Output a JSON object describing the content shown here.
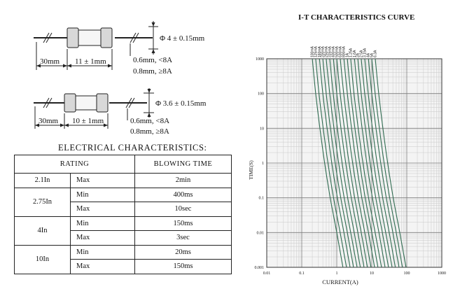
{
  "fuse_drawings": {
    "top": {
      "diameter_label": "Φ 4 ± 0.15mm",
      "lead_length_label": "30mm",
      "body_length_label": "11 ± 1mm",
      "lead_dia_lines": [
        "0.6mm, <8A",
        "0.8mm, ≥8A"
      ]
    },
    "bottom": {
      "diameter_label": "Φ 3.6 ± 0.15mm",
      "lead_length_label": "30mm",
      "body_length_label": "10 ± 1mm",
      "lead_dia_lines": [
        "0.6mm, <8A",
        "0.8mm, ≥8A"
      ]
    }
  },
  "electrical": {
    "title": "ELECTRICAL CHARACTERISTICS:",
    "headers": {
      "rating": "RATING",
      "blowing_time": "BLOWING TIME"
    },
    "rows": [
      {
        "rating": "2.1In",
        "limits": [
          {
            "kind": "Max",
            "time": "2min"
          }
        ]
      },
      {
        "rating": "2.75In",
        "limits": [
          {
            "kind": "Min",
            "time": "400ms"
          },
          {
            "kind": "Max",
            "time": "10sec"
          }
        ]
      },
      {
        "rating": "4In",
        "limits": [
          {
            "kind": "Min",
            "time": "150ms"
          },
          {
            "kind": "Max",
            "time": "3sec"
          }
        ]
      },
      {
        "rating": "10In",
        "limits": [
          {
            "kind": "Min",
            "time": "20ms"
          },
          {
            "kind": "Max",
            "time": "150ms"
          }
        ]
      }
    ]
  },
  "chart_data": {
    "type": "line",
    "title": "I-T CHARACTERISTICS CURVE",
    "xlabel": "CURRENT(A)",
    "ylabel": "TIME(S)",
    "x_scale": "log",
    "y_scale": "log",
    "xlim": [
      0.01,
      1000
    ],
    "ylim": [
      0.001,
      1000
    ],
    "x_ticks": [
      "0.01",
      "0.1",
      "1",
      "10",
      "100",
      "1000"
    ],
    "y_ticks": [
      "1000",
      "100",
      "10",
      "1",
      "0.1",
      "0.01",
      "0.001"
    ],
    "grid": true,
    "line_color": "#2f6b50",
    "series": [
      {
        "name": "100mA",
        "points": [
          [
            0.2,
            1000
          ],
          [
            0.25,
            100
          ],
          [
            0.33,
            10
          ],
          [
            0.45,
            1
          ],
          [
            0.65,
            0.1
          ],
          [
            1.0,
            0.01
          ],
          [
            1.5,
            0.001
          ]
        ]
      },
      {
        "name": "125mA",
        "points": [
          [
            0.25,
            1000
          ],
          [
            0.31,
            100
          ],
          [
            0.41,
            10
          ],
          [
            0.56,
            1
          ],
          [
            0.81,
            0.1
          ],
          [
            1.25,
            0.01
          ],
          [
            1.9,
            0.001
          ]
        ]
      },
      {
        "name": "160mA",
        "points": [
          [
            0.32,
            1000
          ],
          [
            0.4,
            100
          ],
          [
            0.53,
            10
          ],
          [
            0.72,
            1
          ],
          [
            1.04,
            0.1
          ],
          [
            1.6,
            0.01
          ],
          [
            2.4,
            0.001
          ]
        ]
      },
      {
        "name": "200mA",
        "points": [
          [
            0.4,
            1000
          ],
          [
            0.5,
            100
          ],
          [
            0.66,
            10
          ],
          [
            0.9,
            1
          ],
          [
            1.3,
            0.1
          ],
          [
            2.0,
            0.01
          ],
          [
            3.0,
            0.001
          ]
        ]
      },
      {
        "name": "250mA",
        "points": [
          [
            0.5,
            1000
          ],
          [
            0.63,
            100
          ],
          [
            0.83,
            10
          ],
          [
            1.13,
            1
          ],
          [
            1.63,
            0.1
          ],
          [
            2.5,
            0.01
          ],
          [
            3.8,
            0.001
          ]
        ]
      },
      {
        "name": "315mA",
        "points": [
          [
            0.63,
            1000
          ],
          [
            0.79,
            100
          ],
          [
            1.04,
            10
          ],
          [
            1.42,
            1
          ],
          [
            2.05,
            0.1
          ],
          [
            3.15,
            0.01
          ],
          [
            4.7,
            0.001
          ]
        ]
      },
      {
        "name": "400mA",
        "points": [
          [
            0.8,
            1000
          ],
          [
            1.0,
            100
          ],
          [
            1.32,
            10
          ],
          [
            1.8,
            1
          ],
          [
            2.6,
            0.1
          ],
          [
            4.0,
            0.01
          ],
          [
            6.0,
            0.001
          ]
        ]
      },
      {
        "name": "500mA",
        "points": [
          [
            1.0,
            1000
          ],
          [
            1.25,
            100
          ],
          [
            1.65,
            10
          ],
          [
            2.25,
            1
          ],
          [
            3.25,
            0.1
          ],
          [
            5.0,
            0.01
          ],
          [
            7.5,
            0.001
          ]
        ]
      },
      {
        "name": "630mA",
        "points": [
          [
            1.26,
            1000
          ],
          [
            1.58,
            100
          ],
          [
            2.08,
            10
          ],
          [
            2.84,
            1
          ],
          [
            4.1,
            0.1
          ],
          [
            6.3,
            0.01
          ],
          [
            9.5,
            0.001
          ]
        ]
      },
      {
        "name": "800mA",
        "points": [
          [
            1.6,
            1000
          ],
          [
            2.0,
            100
          ],
          [
            2.64,
            10
          ],
          [
            3.6,
            1
          ],
          [
            5.2,
            0.1
          ],
          [
            8.0,
            0.01
          ],
          [
            12,
            0.001
          ]
        ]
      },
      {
        "name": "1A",
        "points": [
          [
            2.0,
            1000
          ],
          [
            2.5,
            100
          ],
          [
            3.3,
            10
          ],
          [
            4.5,
            1
          ],
          [
            6.5,
            0.1
          ],
          [
            10,
            0.01
          ],
          [
            15,
            0.001
          ]
        ]
      },
      {
        "name": "1.25A",
        "points": [
          [
            2.5,
            1000
          ],
          [
            3.1,
            100
          ],
          [
            4.1,
            10
          ],
          [
            5.6,
            1
          ],
          [
            8.1,
            0.1
          ],
          [
            12.5,
            0.01
          ],
          [
            19,
            0.001
          ]
        ]
      },
      {
        "name": "1.6A",
        "points": [
          [
            3.2,
            1000
          ],
          [
            4.0,
            100
          ],
          [
            5.3,
            10
          ],
          [
            7.2,
            1
          ],
          [
            10.4,
            0.1
          ],
          [
            16,
            0.01
          ],
          [
            24,
            0.001
          ]
        ]
      },
      {
        "name": "2A",
        "points": [
          [
            4.0,
            1000
          ],
          [
            5.0,
            100
          ],
          [
            6.6,
            10
          ],
          [
            9.0,
            1
          ],
          [
            13,
            0.1
          ],
          [
            20,
            0.01
          ],
          [
            30,
            0.001
          ]
        ]
      },
      {
        "name": "2.5A",
        "points": [
          [
            5.0,
            1000
          ],
          [
            6.3,
            100
          ],
          [
            8.3,
            10
          ],
          [
            11.3,
            1
          ],
          [
            16.3,
            0.1
          ],
          [
            25,
            0.01
          ],
          [
            38,
            0.001
          ]
        ]
      },
      {
        "name": "3.15A",
        "points": [
          [
            6.3,
            1000
          ],
          [
            7.9,
            100
          ],
          [
            10.4,
            10
          ],
          [
            14.2,
            1
          ],
          [
            20.5,
            0.1
          ],
          [
            31.5,
            0.01
          ],
          [
            47,
            0.001
          ]
        ]
      },
      {
        "name": "4A",
        "points": [
          [
            8.0,
            1000
          ],
          [
            10,
            100
          ],
          [
            13.2,
            10
          ],
          [
            18,
            1
          ],
          [
            26,
            0.1
          ],
          [
            40,
            0.01
          ],
          [
            60,
            0.001
          ]
        ]
      },
      {
        "name": "5A",
        "points": [
          [
            10,
            1000
          ],
          [
            12.5,
            100
          ],
          [
            16.5,
            10
          ],
          [
            22.5,
            1
          ],
          [
            32.5,
            0.1
          ],
          [
            50,
            0.01
          ],
          [
            75,
            0.001
          ]
        ]
      },
      {
        "name": "6.3A",
        "points": [
          [
            12.6,
            1000
          ],
          [
            15.8,
            100
          ],
          [
            20.8,
            10
          ],
          [
            28.4,
            1
          ],
          [
            41,
            0.1
          ],
          [
            63,
            0.01
          ],
          [
            95,
            0.001
          ]
        ]
      }
    ]
  }
}
